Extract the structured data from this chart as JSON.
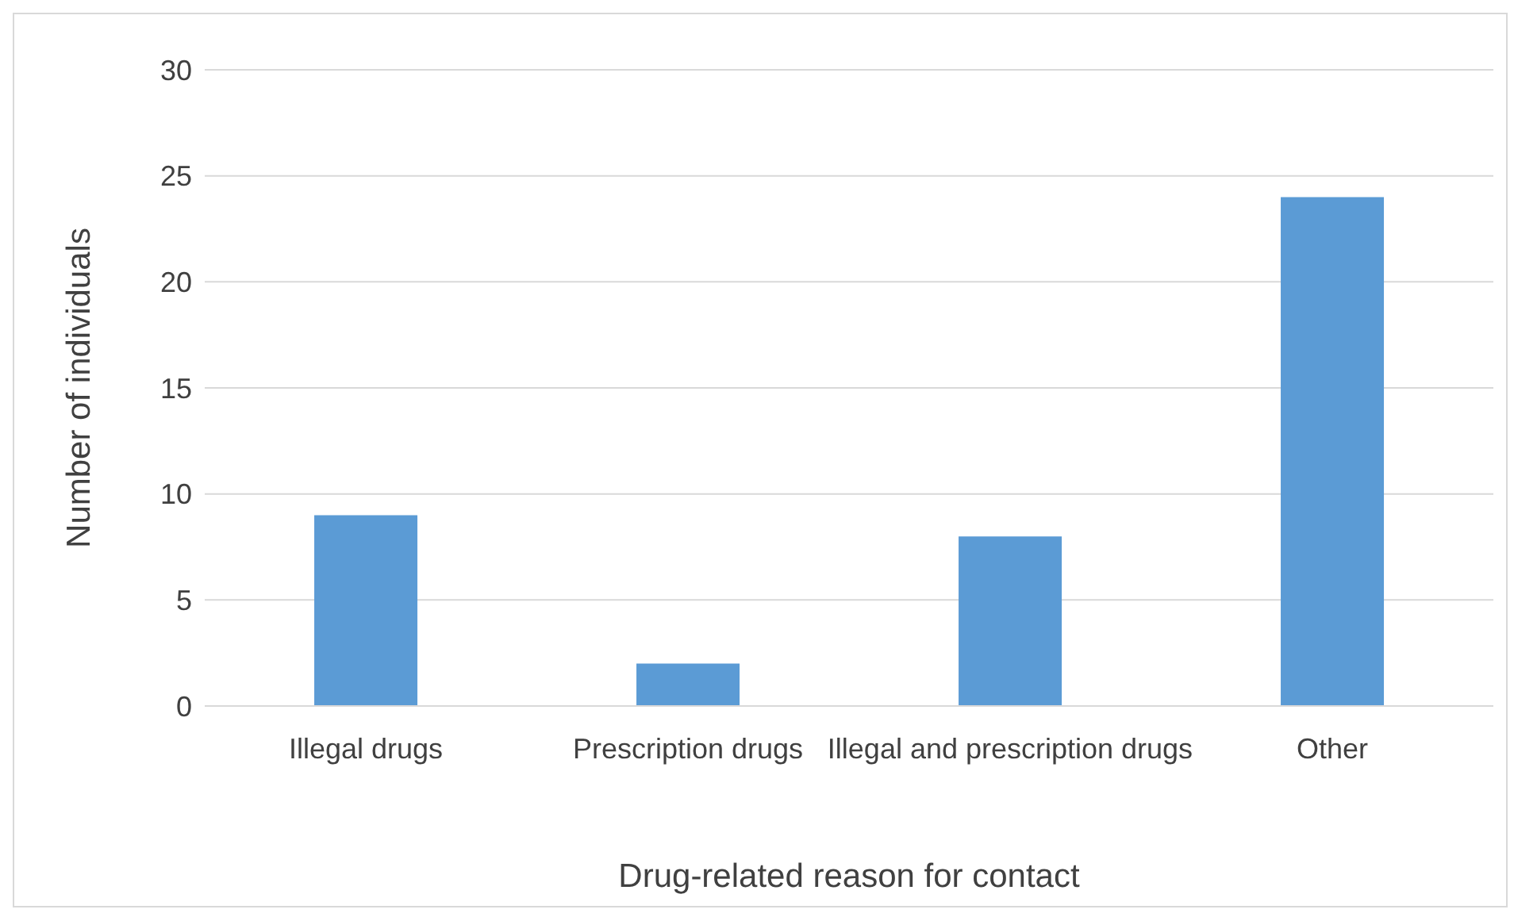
{
  "chart_data": {
    "type": "bar",
    "xlabel": "Drug-related reason for contact",
    "ylabel": "Number of individuals",
    "categories": [
      "Illegal drugs",
      "Prescription drugs",
      "Illegal and prescription drugs",
      "Other"
    ],
    "values": [
      9,
      2,
      8,
      24
    ],
    "color": "#5b9bd5",
    "ylim": [
      0,
      30
    ],
    "yticks": [
      0,
      5,
      10,
      15,
      20,
      25,
      30
    ],
    "grid": "y"
  }
}
